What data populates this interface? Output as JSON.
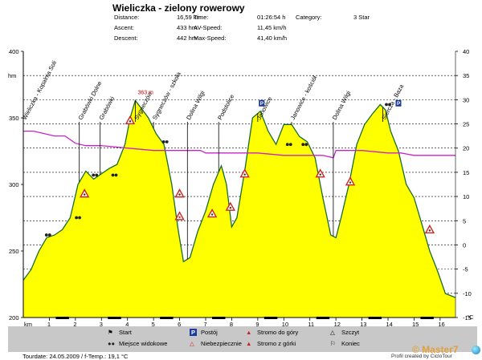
{
  "header": {
    "title": "Wieliczka - zielony rowerowy",
    "stats": [
      {
        "label": "Distance:",
        "value": "16,59 km"
      },
      {
        "label": "Time:",
        "value": "01:26:54 h"
      },
      {
        "label": "Category:",
        "value": "3 Star"
      },
      {
        "label": "Ascent:",
        "value": "433 hm"
      },
      {
        "label": "AV-Speed:",
        "value": "11,45 km/h"
      },
      {
        "label": "Descent:",
        "value": "442 hm"
      },
      {
        "label": "Max-Speed:",
        "value": "41,40 km/h"
      }
    ]
  },
  "chart_data": {
    "type": "area",
    "xlabel": "km",
    "ylabel": "hm",
    "right_unit": "°C",
    "xlim": [
      0,
      16.59
    ],
    "ylim": [
      200,
      400
    ],
    "y2lim": [
      -15,
      40
    ],
    "x_ticks": [
      1,
      2,
      3,
      4,
      5,
      6,
      7,
      8,
      9,
      10,
      11,
      12,
      13,
      14,
      15,
      16
    ],
    "y_ticks": [
      200,
      250,
      300,
      350,
      400
    ],
    "y2_ticks": [
      -15,
      -10,
      -5,
      0,
      5,
      10,
      15,
      20,
      25,
      30,
      35,
      40
    ],
    "grid": "dashed horizontal",
    "max_label": "363 m",
    "max_point": {
      "x": 4.3,
      "y": 363
    },
    "colors": {
      "profile_fill": "#ffff00",
      "profile_line": "#1a6b2a",
      "temperature": "#cc22cc"
    },
    "series": [
      {
        "type": "area",
        "x": [
          0,
          0.3,
          0.6,
          0.9,
          1.2,
          1.5,
          1.8,
          2.1,
          2.4,
          2.7,
          3.0,
          3.3,
          3.6,
          3.9,
          4.1,
          4.3,
          4.5,
          4.8,
          5.1,
          5.4,
          5.7,
          5.95,
          6.15,
          6.4,
          6.7,
          7.0,
          7.3,
          7.6,
          7.8,
          8.0,
          8.2,
          8.5,
          8.8,
          9.1,
          9.4,
          9.7,
          10.0,
          10.3,
          10.6,
          10.9,
          11.2,
          11.5,
          11.8,
          12.0,
          12.2,
          12.5,
          12.8,
          13.1,
          13.4,
          13.7,
          13.9,
          14.1,
          14.4,
          14.7,
          15.0,
          15.3,
          15.6,
          15.9,
          16.2,
          16.59
        ],
        "y": [
          228,
          236,
          250,
          260,
          262,
          266,
          275,
          300,
          310,
          304,
          308,
          312,
          315,
          330,
          350,
          363,
          358,
          350,
          338,
          330,
          300,
          265,
          242,
          245,
          265,
          280,
          300,
          314,
          300,
          268,
          275,
          310,
          350,
          355,
          340,
          330,
          345,
          345,
          336,
          332,
          320,
          290,
          262,
          260,
          275,
          300,
          330,
          345,
          353,
          360,
          356,
          340,
          325,
          300,
          290,
          270,
          250,
          235,
          218,
          215
        ]
      },
      {
        "type": "line",
        "name": "temperature",
        "x": [
          0,
          0.4,
          0.8,
          1.2,
          1.6,
          2.0,
          2.4,
          3.0,
          4.0,
          5.0,
          6.0,
          6.8,
          7.0,
          8.0,
          9.0,
          10.0,
          11.0,
          11.5,
          11.9,
          12.0,
          12.6,
          13.0,
          14.0,
          14.5,
          15.0,
          15.5,
          16.0,
          16.59
        ],
        "y": [
          23.5,
          23.5,
          23,
          22.5,
          22.5,
          21,
          20.5,
          20.5,
          20,
          19.5,
          19.5,
          19.5,
          19,
          19,
          19,
          18.5,
          18.5,
          18.5,
          18,
          19.5,
          19.5,
          19.5,
          19,
          19,
          18.5,
          18.5,
          18.5,
          18.5
        ]
      }
    ],
    "waypoints": [
      {
        "name": "Wieliczka - Kopalnia Soli",
        "km": 0
      },
      {
        "name": "Grabówki Dolne",
        "km": 2.15
      },
      {
        "name": "Grabówki",
        "km": 2.95
      },
      {
        "name": "Sygneczów",
        "km": 4.3
      },
      {
        "name": "Sygneczów - szkoła",
        "km": 5.0
      },
      {
        "name": "Dolina Wilgi",
        "km": 6.3
      },
      {
        "name": "Podstolice",
        "km": 7.5
      },
      {
        "name": "Janowice",
        "km": 9.0
      },
      {
        "name": "Janowice - kościół",
        "km": 10.3
      },
      {
        "name": "Dolina Wilgi",
        "km": 11.9
      },
      {
        "name": "Sierczа - Baza",
        "km": 13.8
      }
    ],
    "markers": [
      {
        "type": "view",
        "x": 0.95,
        "y": 262
      },
      {
        "type": "view",
        "x": 2.1,
        "y": 275
      },
      {
        "type": "view",
        "x": 2.75,
        "y": 307
      },
      {
        "type": "view",
        "x": 3.5,
        "y": 307
      },
      {
        "type": "view",
        "x": 5.45,
        "y": 332
      },
      {
        "type": "view",
        "x": 10.2,
        "y": 330
      },
      {
        "type": "view",
        "x": 10.8,
        "y": 330
      },
      {
        "type": "view",
        "x": 14.0,
        "y": 360
      },
      {
        "type": "up",
        "x": 2.35,
        "y": 293
      },
      {
        "type": "up",
        "x": 4.1,
        "y": 348
      },
      {
        "type": "up",
        "x": 7.25,
        "y": 278
      },
      {
        "type": "up",
        "x": 8.5,
        "y": 308
      },
      {
        "type": "up",
        "x": 12.55,
        "y": 302
      },
      {
        "type": "down",
        "x": 6.0,
        "y": 293
      },
      {
        "type": "down",
        "x": 7.95,
        "y": 283
      },
      {
        "type": "down",
        "x": 11.4,
        "y": 308
      },
      {
        "type": "down",
        "x": 15.6,
        "y": 266
      },
      {
        "type": "danger",
        "x": 6.0,
        "y": 276
      },
      {
        "type": "rest",
        "x": 9.15,
        "y": 361
      },
      {
        "type": "rest",
        "x": 14.4,
        "y": 361
      }
    ]
  },
  "legend": {
    "items": [
      {
        "icon": "start",
        "label": "Start"
      },
      {
        "icon": "rest",
        "label": "Postój"
      },
      {
        "icon": "up",
        "label": "Stromo do góry"
      },
      {
        "icon": "summit",
        "label": "Szczyt"
      },
      {
        "icon": "view",
        "label": "Miejsce widokowe"
      },
      {
        "icon": "danger",
        "label": "Niebezpiecznie"
      },
      {
        "icon": "down",
        "label": "Stromo z górki"
      },
      {
        "icon": "finish",
        "label": "Koniec"
      }
    ]
  },
  "footer": {
    "date": "Tourdate: 24.05.2009 / f-Temp.: 19,1 °C",
    "credit": "Profil created by CicloTour",
    "watermark": "© Master7"
  }
}
